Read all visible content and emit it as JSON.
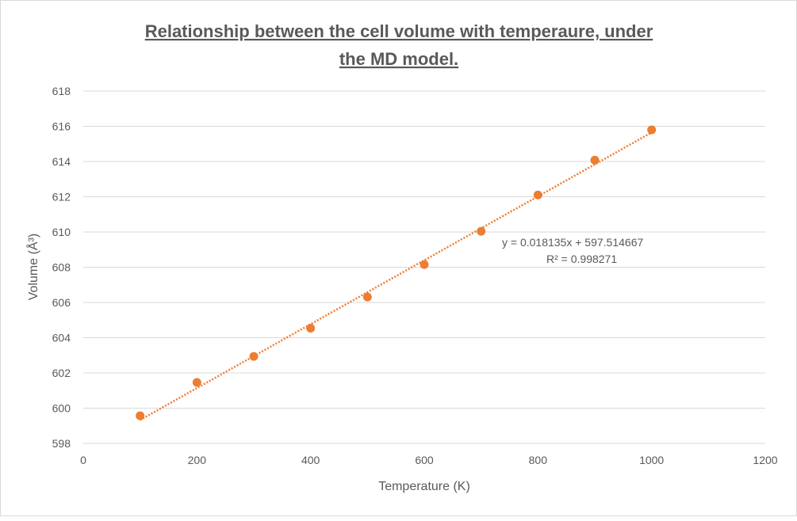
{
  "chart_data": {
    "type": "scatter",
    "title_line1": "Relationship between the cell volume with temperaure, under",
    "title_line2": "the MD model.",
    "xlabel": "Temperature (K)",
    "ylabel": "Volume (Å³)",
    "xlim": [
      0,
      1200
    ],
    "ylim": [
      598,
      618
    ],
    "xticks": [
      "0",
      "200",
      "400",
      "600",
      "800",
      "1000",
      "1200"
    ],
    "yticks": [
      "598",
      "600",
      "602",
      "604",
      "606",
      "608",
      "610",
      "612",
      "614",
      "616",
      "618"
    ],
    "grid": "horizontal",
    "series": [
      {
        "name": "Volume",
        "color": "#ED7D31",
        "x": [
          100,
          200,
          300,
          400,
          500,
          600,
          700,
          800,
          900,
          1000
        ],
        "y": [
          599.57,
          601.46,
          602.94,
          604.54,
          606.31,
          608.15,
          610.04,
          612.1,
          614.08,
          615.8
        ]
      }
    ],
    "trendline": {
      "slope": 0.018135,
      "intercept": 597.514667,
      "color": "#ED7D31",
      "equation": "y = 0.018135x + 597.514667",
      "r2": "R² = 0.998271"
    }
  }
}
